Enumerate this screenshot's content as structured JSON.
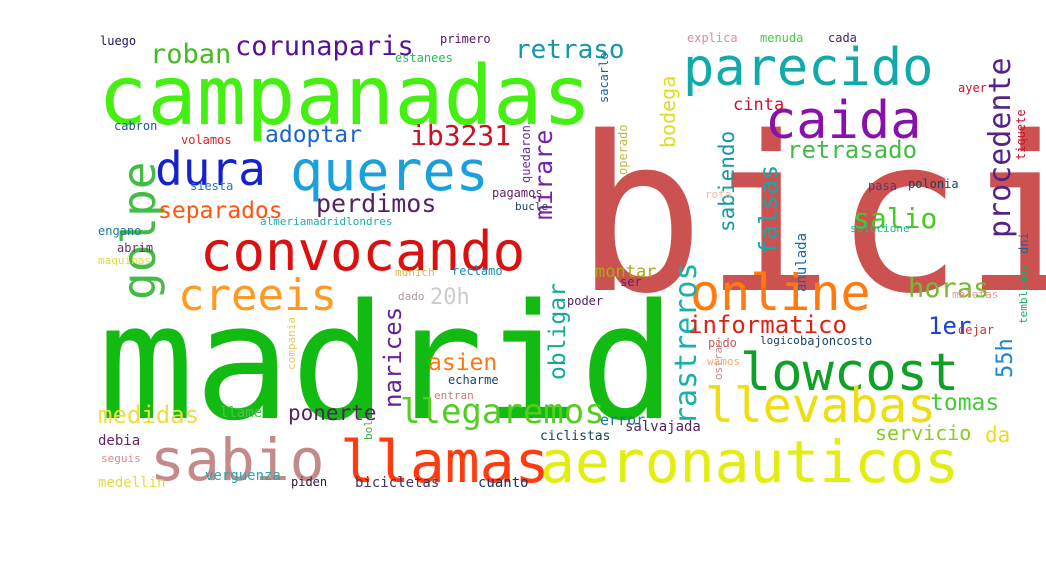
{
  "words": [
    {
      "text": "bici",
      "color": "#cc5151",
      "rotated": false
    },
    {
      "text": "madrid",
      "color": "#11bb11",
      "rotated": false
    },
    {
      "text": "campanadas",
      "color": "#44f011",
      "rotated": false
    },
    {
      "text": "aeronauticos",
      "color": "#e2ee0f",
      "rotated": false
    },
    {
      "text": "sabio",
      "color": "#c48a8a",
      "rotated": false
    },
    {
      "text": "llamas",
      "color": "#ff3b0f",
      "rotated": false
    },
    {
      "text": "convocando",
      "color": "#dd1010",
      "rotated": false
    },
    {
      "text": "parecido",
      "color": "#10aaaa",
      "rotated": false
    },
    {
      "text": "caida",
      "color": "#8811aa",
      "rotated": false
    },
    {
      "text": "queres",
      "color": "#1aa0dd",
      "rotated": false
    },
    {
      "text": "online",
      "color": "#ff7b10",
      "rotated": false
    },
    {
      "text": "lowcost",
      "color": "#10a028",
      "rotated": false
    },
    {
      "text": "llevabas",
      "color": "#eedd10",
      "rotated": false
    },
    {
      "text": "dura",
      "color": "#1522cc",
      "rotated": false
    },
    {
      "text": "golpe",
      "color": "#44bb44",
      "rotated": true
    },
    {
      "text": "creeis",
      "color": "#ff9922",
      "rotated": false
    },
    {
      "text": "llegaremos",
      "color": "#55cc22",
      "rotated": false
    },
    {
      "text": "rastreros",
      "color": "#1ab0aa",
      "rotated": true
    },
    {
      "text": "procedente",
      "color": "#552288",
      "rotated": true
    },
    {
      "text": "roban",
      "color": "#44bb22",
      "rotated": false
    },
    {
      "text": "corunaparis",
      "color": "#551199",
      "rotated": false
    },
    {
      "text": "retraso",
      "color": "#1199aa",
      "rotated": false
    },
    {
      "text": "adoptar",
      "color": "#1a66cc",
      "rotated": false
    },
    {
      "text": "ib3231",
      "color": "#cc1122",
      "rotated": false
    },
    {
      "text": "retrasado",
      "color": "#44bb44",
      "rotated": false
    },
    {
      "text": "separados",
      "color": "#ff5511",
      "rotated": false
    },
    {
      "text": "perdimos",
      "color": "#552266",
      "rotated": false
    },
    {
      "text": "salio",
      "color": "#44cc22",
      "rotated": false
    },
    {
      "text": "sabiendo",
      "color": "#1199aa",
      "rotated": true
    },
    {
      "text": "falsas",
      "color": "#11aaaa",
      "rotated": true
    },
    {
      "text": "bodega",
      "color": "#dddd22",
      "rotated": true
    },
    {
      "text": "mirare",
      "color": "#7722aa",
      "rotated": true
    },
    {
      "text": "horas",
      "color": "#77bb33",
      "rotated": false
    },
    {
      "text": "informatico",
      "color": "#dd2211",
      "rotated": false
    },
    {
      "text": "1er",
      "color": "#1a44cc",
      "rotated": false
    },
    {
      "text": "obligar",
      "color": "#11aa99",
      "rotated": true
    },
    {
      "text": "narices",
      "color": "#662299",
      "rotated": true
    },
    {
      "text": "asien",
      "color": "#ff7711",
      "rotated": false
    },
    {
      "text": "20h",
      "color": "#cccccc",
      "rotated": false
    },
    {
      "text": "55h",
      "color": "#1a88cc",
      "rotated": true
    },
    {
      "text": "medidas",
      "color": "#eedd44",
      "rotated": false
    },
    {
      "text": "ponerte",
      "color": "#552266",
      "rotated": false
    },
    {
      "text": "tomas",
      "color": "#44cc33",
      "rotated": false
    },
    {
      "text": "servicio",
      "color": "#88cc22",
      "rotated": false
    },
    {
      "text": "da",
      "color": "#eedd11",
      "rotated": false
    },
    {
      "text": "cinta",
      "color": "#cc1133",
      "rotated": false
    },
    {
      "text": "montar",
      "color": "#aaaa11",
      "rotated": false
    },
    {
      "text": "anulada",
      "color": "#1a66aa",
      "rotated": true
    },
    {
      "text": "llame",
      "color": "#55bb55",
      "rotated": false
    },
    {
      "text": "ciclistas",
      "color": "#114455",
      "rotated": false
    },
    {
      "text": "salvajada",
      "color": "#552266",
      "rotated": false
    },
    {
      "text": "error",
      "color": "#1a7799",
      "rotated": false
    },
    {
      "text": "bicicletas",
      "color": "#443366",
      "rotated": false
    },
    {
      "text": "cuanto",
      "color": "#1a3366",
      "rotated": false
    },
    {
      "text": "medellin",
      "color": "#dddd44",
      "rotated": false
    },
    {
      "text": "verguenza",
      "color": "#22aaaa",
      "rotated": false
    },
    {
      "text": "piden",
      "color": "#331144",
      "rotated": false
    },
    {
      "text": "debia",
      "color": "#662266",
      "rotated": false
    },
    {
      "text": "seguis",
      "color": "#dd8888",
      "rotated": false
    },
    {
      "text": "bol",
      "color": "#44aa44",
      "rotated": true
    },
    {
      "text": "luego",
      "color": "#221166",
      "rotated": false
    },
    {
      "text": "primero",
      "color": "#551166",
      "rotated": false
    },
    {
      "text": "estanees",
      "color": "#22bb55",
      "rotated": false
    },
    {
      "text": "sacarlo",
      "color": "#1a6699",
      "rotated": true
    },
    {
      "text": "explica",
      "color": "#dd88aa",
      "rotated": false
    },
    {
      "text": "menuda",
      "color": "#44cc44",
      "rotated": false
    },
    {
      "text": "cada",
      "color": "#442266",
      "rotated": false
    },
    {
      "text": "ayer",
      "color": "#cc1133",
      "rotated": false
    },
    {
      "text": "tiquete",
      "color": "#cc1133",
      "rotated": true
    },
    {
      "text": "cabron",
      "color": "#1a5599",
      "rotated": false
    },
    {
      "text": "volamos",
      "color": "#dd2222",
      "rotated": false
    },
    {
      "text": "siesta",
      "color": "#1a77bb",
      "rotated": false
    },
    {
      "text": "quedaron",
      "color": "#663399",
      "rotated": true
    },
    {
      "text": "operado",
      "color": "#bbbb44",
      "rotated": true
    },
    {
      "text": "pagamos",
      "color": "#662266",
      "rotated": false
    },
    {
      "text": "bucle",
      "color": "#1a4466",
      "rotated": false
    },
    {
      "text": "engano",
      "color": "#1a7799",
      "rotated": false
    },
    {
      "text": "almeriamadridlondres",
      "color": "#22aaaa",
      "rotated": false
    },
    {
      "text": "abrim",
      "color": "#663366",
      "rotated": false
    },
    {
      "text": "maquinas",
      "color": "#dddd44",
      "rotated": false
    },
    {
      "text": "rota",
      "color": "#eebbaa",
      "rotated": false
    },
    {
      "text": "pasa",
      "color": "#663366",
      "rotated": false
    },
    {
      "text": "polonia",
      "color": "#1a4466",
      "rotated": false
    },
    {
      "text": "solucione",
      "color": "#22bb88",
      "rotated": false
    },
    {
      "text": "dni",
      "color": "#1a6699",
      "rotated": true
    },
    {
      "text": "munich",
      "color": "#ddbb44",
      "rotated": false
    },
    {
      "text": "reclamo",
      "color": "#1a88bb",
      "rotated": false
    },
    {
      "text": "ser",
      "color": "#662266",
      "rotated": false
    },
    {
      "text": "maletas",
      "color": "#ee9999",
      "rotated": false
    },
    {
      "text": "temblamos",
      "color": "#22aa66",
      "rotated": true
    },
    {
      "text": "dado",
      "color": "#aa9999",
      "rotated": false
    },
    {
      "text": "poder",
      "color": "#552266",
      "rotated": false
    },
    {
      "text": "dejar",
      "color": "#cc3333",
      "rotated": false
    },
    {
      "text": "compania",
      "color": "#ddcc66",
      "rotated": true
    },
    {
      "text": "pido",
      "color": "#cc5555",
      "rotated": false
    },
    {
      "text": "logico",
      "color": "#1a4466",
      "rotated": false
    },
    {
      "text": "bajoncosto",
      "color": "#1a4466",
      "rotated": false
    },
    {
      "text": "ostras",
      "color": "#cc8888",
      "rotated": true
    },
    {
      "text": "wamos",
      "color": "#eeaa77",
      "rotated": false
    },
    {
      "text": "echarme",
      "color": "#1a4466",
      "rotated": false
    },
    {
      "text": "entran",
      "color": "#cc7777",
      "rotated": false
    }
  ]
}
